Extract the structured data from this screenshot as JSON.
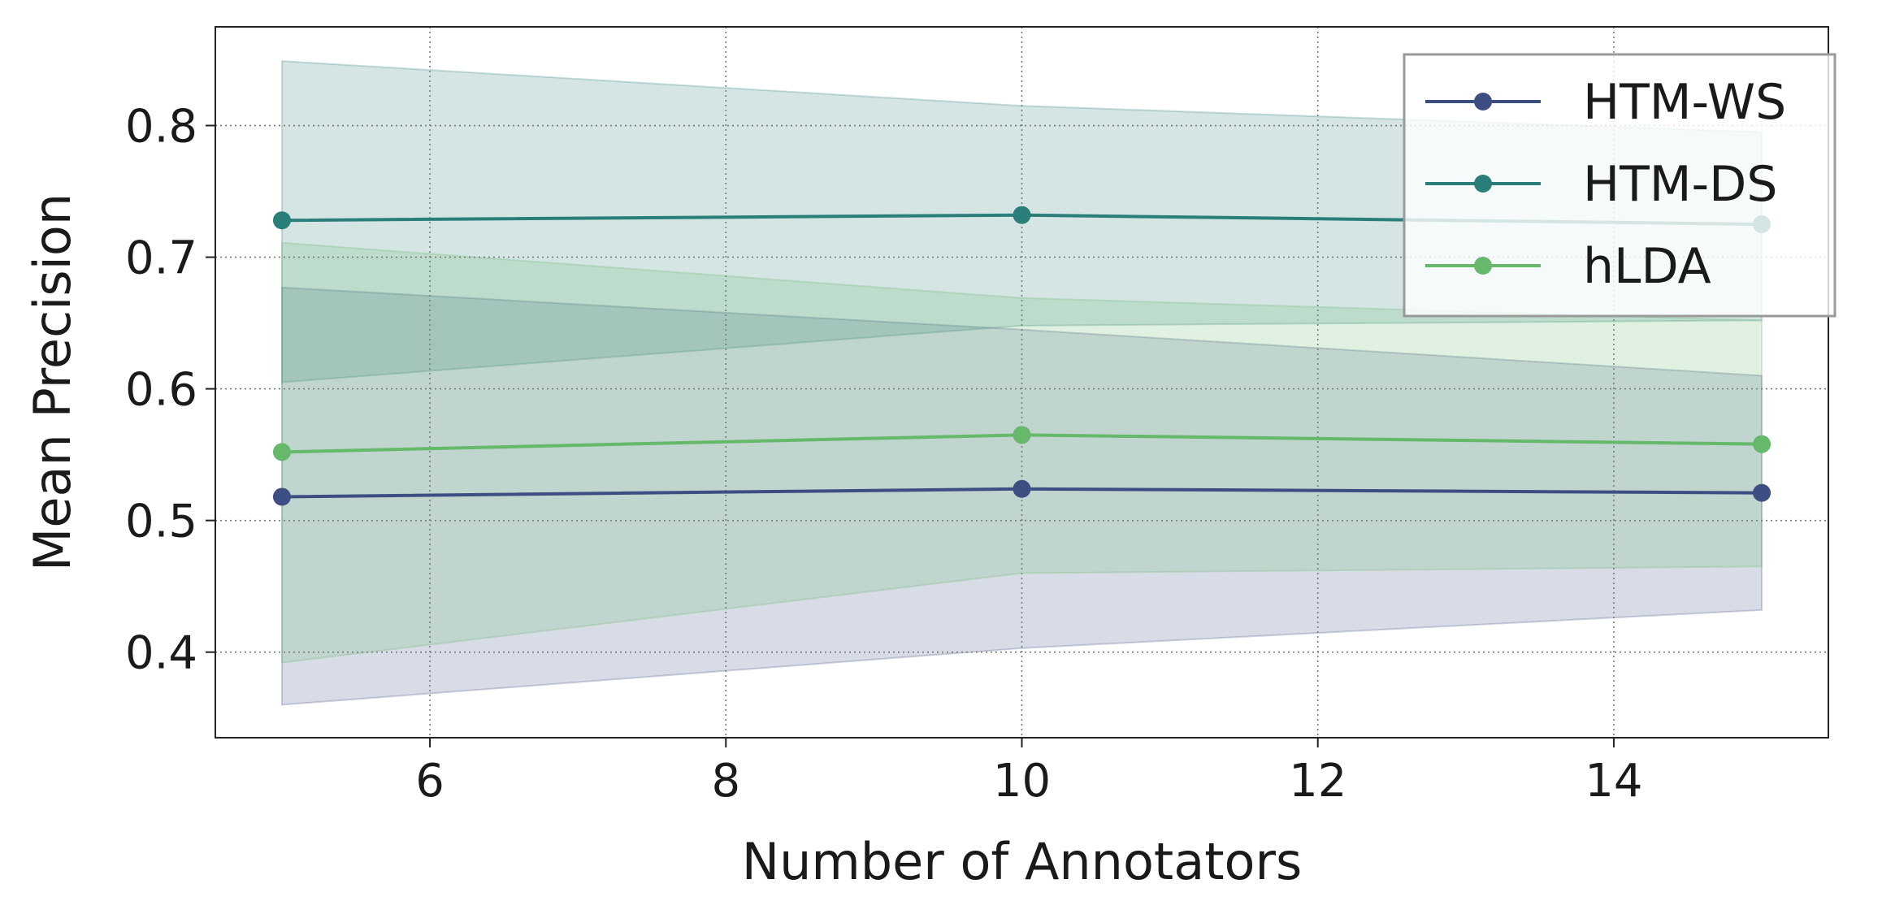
{
  "chart_data": {
    "type": "line",
    "title": "",
    "xlabel": "Number of Annotators",
    "ylabel": "Mean Precision",
    "xlim": [
      4.55,
      15.45
    ],
    "ylim": [
      0.335,
      0.875
    ],
    "xticks": [
      6,
      8,
      10,
      12,
      14
    ],
    "yticks": [
      0.4,
      0.5,
      0.6,
      0.7,
      0.8
    ],
    "xtick_labels": [
      "6",
      "8",
      "10",
      "12",
      "14"
    ],
    "ytick_labels": [
      "0.4",
      "0.5",
      "0.6",
      "0.7",
      "0.8"
    ],
    "grid": true,
    "legend_position": "upper right",
    "x": [
      5,
      10,
      15
    ],
    "series": [
      {
        "name": "HTM-WS",
        "color": "#3d4f82",
        "values": [
          0.518,
          0.524,
          0.521
        ],
        "lower": [
          0.36,
          0.403,
          0.432
        ],
        "upper": [
          0.677,
          0.645,
          0.61
        ]
      },
      {
        "name": "HTM-DS",
        "color": "#2a7f7a",
        "values": [
          0.728,
          0.732,
          0.725
        ],
        "lower": [
          0.605,
          0.648,
          0.652
        ],
        "upper": [
          0.849,
          0.815,
          0.795
        ]
      },
      {
        "name": "hLDA",
        "color": "#66b86b",
        "values": [
          0.552,
          0.565,
          0.558
        ],
        "lower": [
          0.392,
          0.46,
          0.465
        ],
        "upper": [
          0.711,
          0.669,
          0.652
        ]
      }
    ]
  }
}
